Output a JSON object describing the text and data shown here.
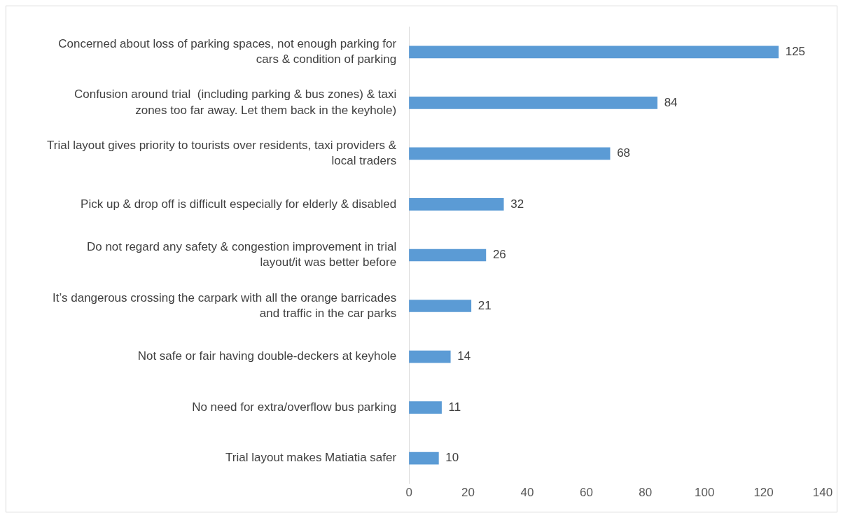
{
  "chart_data": {
    "type": "bar",
    "orientation": "horizontal",
    "categories": [
      "Concerned about loss of parking spaces, not enough parking for cars & condition of parking",
      "Confusion around trial  (including parking & bus zones) & taxi zones too far away. Let them back in the keyhole)",
      "Trial layout gives priority to tourists over residents, taxi providers & local traders",
      "Pick up & drop off is difficult especially for elderly & disabled",
      "Do not regard any safety & congestion improvement in trial layout/it was better before",
      "It’s dangerous crossing the carpark with all the orange barricades and traffic in the car parks",
      "Not safe or fair having double-deckers at keyhole",
      "No need for extra/overflow bus parking",
      "Trial layout makes Matiatia safer"
    ],
    "values": [
      125,
      84,
      68,
      32,
      26,
      21,
      14,
      11,
      10
    ],
    "color": "#5b9bd5",
    "xlim": [
      0,
      140
    ],
    "xticks": [
      0,
      20,
      40,
      60,
      80,
      100,
      120,
      140
    ],
    "grid": false,
    "data_labels": true
  }
}
